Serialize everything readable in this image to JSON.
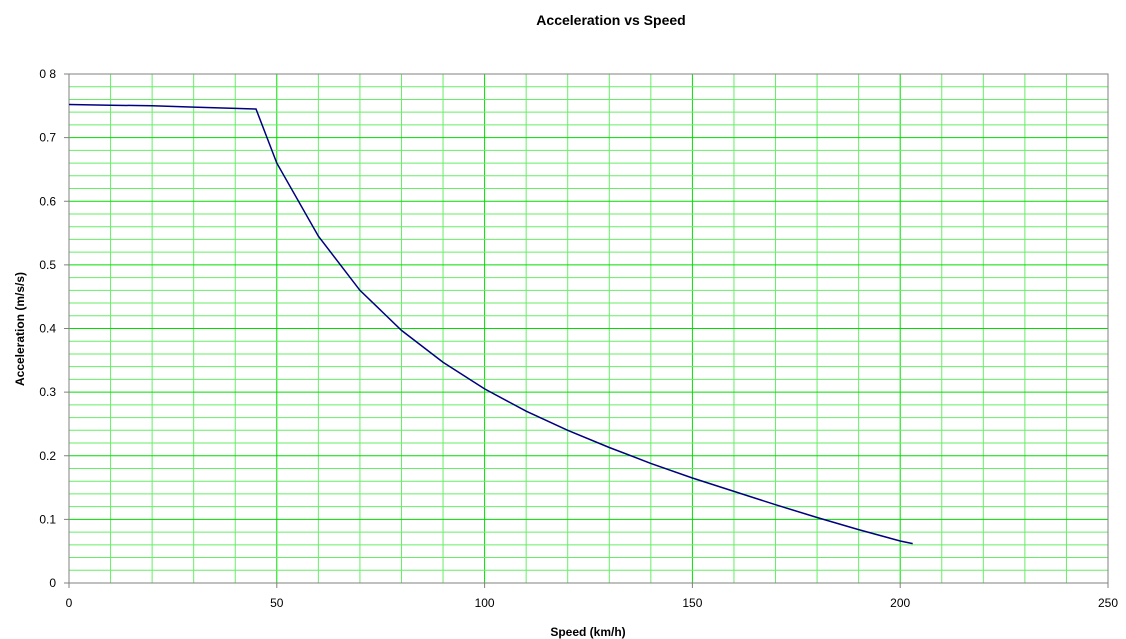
{
  "chart_data": {
    "type": "line",
    "title": "Acceleration vs Speed",
    "xlabel": "Speed (km/h)",
    "ylabel": "Acceleration (m/s/s)",
    "xlim": [
      0,
      250
    ],
    "ylim": [
      0,
      0.8
    ],
    "x_ticks": [
      0,
      50,
      100,
      150,
      200,
      250
    ],
    "y_ticks": [
      0,
      0.1,
      0.2,
      0.3,
      0.4,
      0.5,
      0.6,
      0.7,
      0.8
    ],
    "x_tick_labels": [
      "0",
      "50",
      "100",
      "150",
      "200",
      "250"
    ],
    "y_tick_labels": [
      "0",
      "0.1",
      "0.2",
      "0.3",
      "0.4",
      "0.5",
      "0.6",
      "0.7",
      "0 8"
    ],
    "grid": true,
    "legend": "none",
    "colors": {
      "major_grid": "#00dd00",
      "minor_grid": "#66ee66",
      "line": "#000080",
      "axis": "#808080"
    },
    "series": [
      {
        "x": [
          0,
          10,
          20,
          30,
          40,
          45,
          50,
          60,
          70,
          80,
          90,
          100,
          110,
          120,
          130,
          140,
          150,
          160,
          170,
          180,
          190,
          200,
          203
        ],
        "values": [
          0.752,
          0.751,
          0.75,
          0.748,
          0.746,
          0.745,
          0.66,
          0.545,
          0.46,
          0.397,
          0.347,
          0.305,
          0.27,
          0.24,
          0.213,
          0.188,
          0.165,
          0.144,
          0.123,
          0.103,
          0.084,
          0.066,
          0.062
        ]
      }
    ]
  }
}
